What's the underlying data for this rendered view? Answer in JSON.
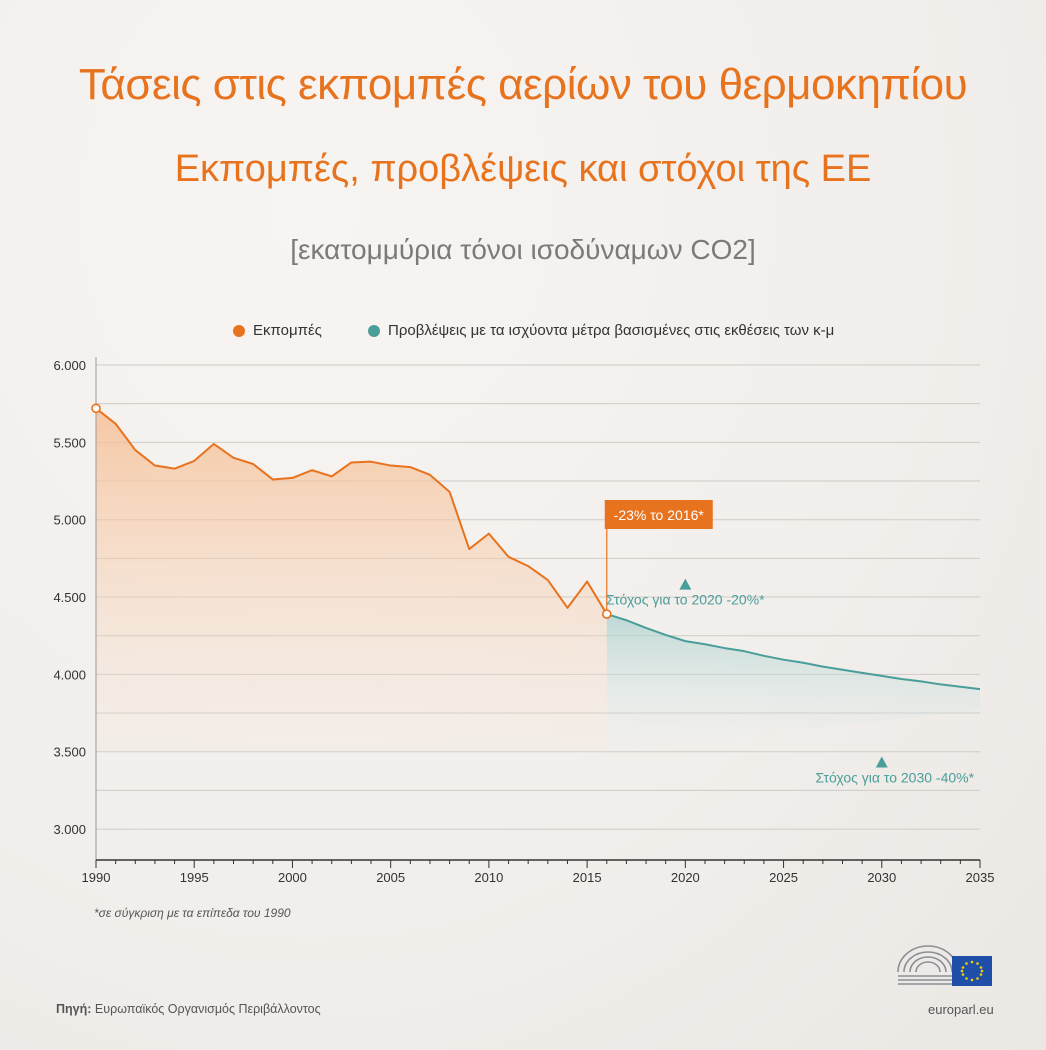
{
  "header": {
    "title": "Τάσεις στις εκπομπές αερίων του θερμοκηπίου",
    "subtitle": "Εκπομπές, προβλέψεις και στόχοι της ΕΕ",
    "units": "[εκατομμύρια τόνοι ισοδύναμων CO2]"
  },
  "legend": {
    "emissions_label": "Εκπομπές",
    "projections_label": "Προβλέψεις με τα ισχύοντα μέτρα βασισμένες στις εκθέσεις των κ-μ"
  },
  "colors": {
    "emissions": "#e8731e",
    "projections": "#4a9e9a",
    "callout_bg": "#e8731e"
  },
  "chart_data": {
    "type": "line",
    "title": "Τάσεις στις εκπομπές αερίων του θερμοκηπίου",
    "ylabel": "[εκατομμύρια τόνοι ισοδύναμων CO2]",
    "xlim": [
      1990,
      2035
    ],
    "ylim": [
      2800,
      6000
    ],
    "grid": true,
    "legend_position": "top",
    "y_ticks": [
      {
        "value": 6000,
        "label": "6.000"
      },
      {
        "value": 5500,
        "label": "5.500"
      },
      {
        "value": 5000,
        "label": "5.000"
      },
      {
        "value": 4500,
        "label": "4.500"
      },
      {
        "value": 4000,
        "label": "4.000"
      },
      {
        "value": 3500,
        "label": "3.500"
      },
      {
        "value": 3000,
        "label": "3.000"
      }
    ],
    "x_ticks": [
      1990,
      1995,
      2000,
      2005,
      2010,
      2015,
      2020,
      2025,
      2030,
      2035
    ],
    "series": [
      {
        "name": "Εκπομπές",
        "x": [
          1990,
          1991,
          1992,
          1993,
          1994,
          1995,
          1996,
          1997,
          1998,
          1999,
          2000,
          2001,
          2002,
          2003,
          2004,
          2005,
          2006,
          2007,
          2008,
          2009,
          2010,
          2011,
          2012,
          2013,
          2014,
          2015,
          2016
        ],
        "values": [
          5720,
          5620,
          5450,
          5350,
          5330,
          5380,
          5490,
          5400,
          5360,
          5260,
          5270,
          5320,
          5280,
          5370,
          5375,
          5350,
          5340,
          5290,
          5180,
          4810,
          4910,
          4760,
          4700,
          4610,
          4430,
          4600,
          4390
        ]
      },
      {
        "name": "Προβλέψεις με τα ισχύοντα μέτρα βασισμένες στις εκθέσεις των κ-μ",
        "x": [
          2016,
          2017,
          2018,
          2019,
          2020,
          2021,
          2022,
          2023,
          2024,
          2025,
          2026,
          2027,
          2028,
          2029,
          2030,
          2031,
          2032,
          2033,
          2034,
          2035
        ],
        "values": [
          4390,
          4350,
          4300,
          4255,
          4215,
          4195,
          4170,
          4150,
          4120,
          4095,
          4075,
          4050,
          4030,
          4010,
          3990,
          3970,
          3955,
          3935,
          3920,
          3905
        ]
      }
    ],
    "targets": [
      {
        "year": 2020,
        "value": 4580,
        "label": "Στόχος για το 2020 -20%*"
      },
      {
        "year": 2030,
        "value": 3430,
        "label": "Στόχος για το 2030 -40%*"
      }
    ],
    "annotations": [
      {
        "year": 2016,
        "value": 4390,
        "label": "-23% το 2016*"
      }
    ]
  },
  "footnote": "*σε σύγκριση με τα επίπεδα του 1990",
  "source": {
    "prefix": "Πηγή:",
    "text": "Ευρωπαϊκός Οργανισμός Περιβάλλοντος"
  },
  "site": "europarl.eu"
}
